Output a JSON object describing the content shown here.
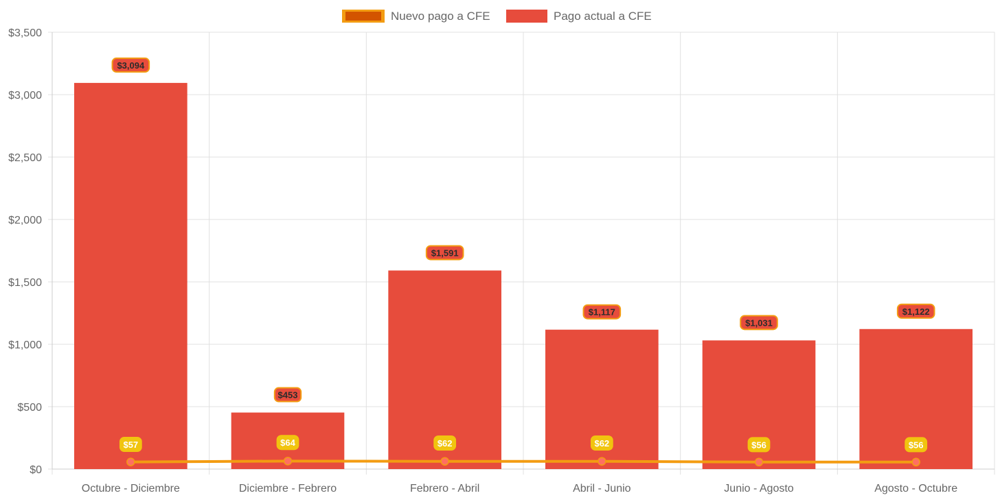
{
  "legend": {
    "new_label": "Nuevo pago a CFE",
    "current_label": "Pago actual a CFE"
  },
  "colors": {
    "bar": "#e74c3c",
    "line": "#f39c12",
    "line_swatch_fill": "#d35400",
    "point": "#ff6f61",
    "label_bg_line": "#f1c40f",
    "label_bg_bar": "#e74c3c",
    "label_border": "#f39c12",
    "grid": "#e0e0e0",
    "tick_text": "#666666"
  },
  "chart_data": {
    "type": "bar",
    "title": "",
    "xlabel": "",
    "ylabel": "",
    "categories": [
      "Octubre - Diciembre",
      "Diciembre - Febrero",
      "Febrero - Abril",
      "Abril - Junio",
      "Junio - Agosto",
      "Agosto - Octubre"
    ],
    "ylim": [
      0,
      3500
    ],
    "yticks": [
      0,
      500,
      1000,
      1500,
      2000,
      2500,
      3000,
      3500
    ],
    "ytick_labels": [
      "$0",
      "$500",
      "$1,000",
      "$1,500",
      "$2,000",
      "$2,500",
      "$3,000",
      "$3,500"
    ],
    "series": [
      {
        "name": "Pago actual a CFE",
        "type": "bar",
        "values": [
          3094,
          453,
          1591,
          1117,
          1031,
          1122
        ],
        "labels": [
          "$3,094",
          "$453",
          "$1,591",
          "$1,117",
          "$1,031",
          "$1,122"
        ]
      },
      {
        "name": "Nuevo pago a CFE",
        "type": "line",
        "values": [
          57,
          64,
          62,
          62,
          56,
          56
        ],
        "labels": [
          "$57",
          "$64",
          "$62",
          "$62",
          "$56",
          "$56"
        ]
      }
    ],
    "grid": true,
    "legend_position": "top-center"
  }
}
